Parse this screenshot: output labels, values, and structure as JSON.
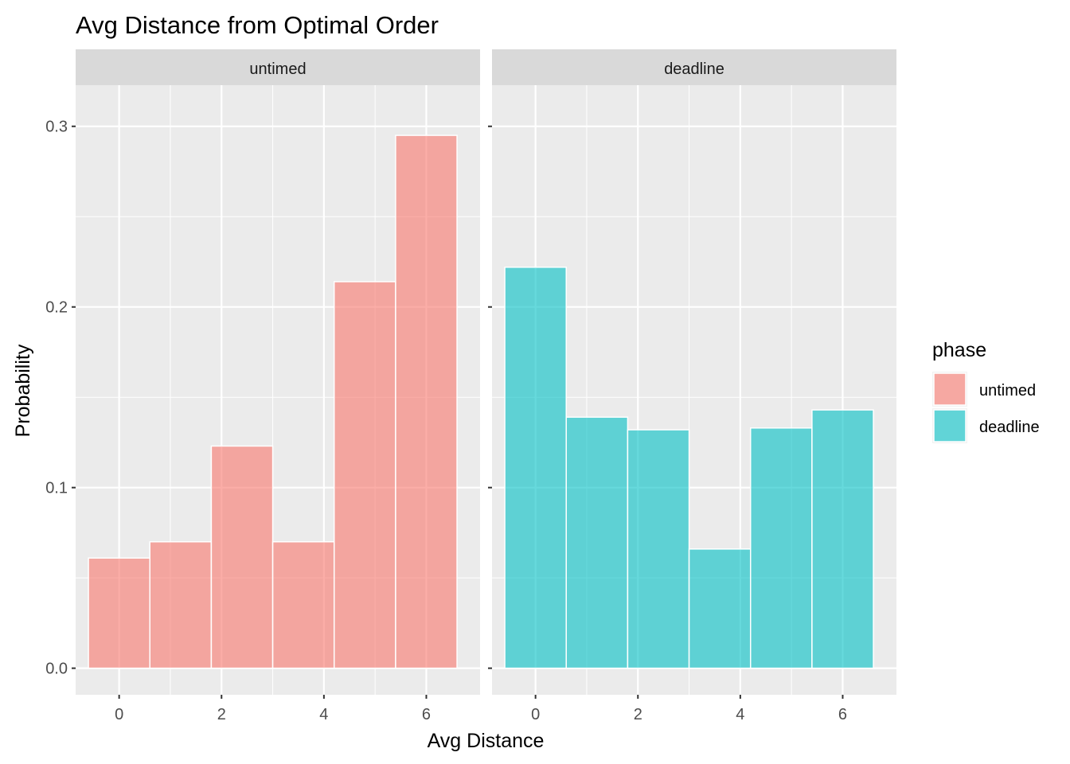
{
  "chart_data": {
    "type": "bar",
    "title": "Avg Distance from Optimal Order",
    "xlabel": "Avg Distance",
    "ylabel": "Probability",
    "xlim": [
      -0.85,
      7.05
    ],
    "ylim": [
      -0.0147,
      0.3228
    ],
    "x_ticks": [
      0,
      2,
      4,
      6
    ],
    "x_tick_labels": [
      "0",
      "2",
      "4",
      "6"
    ],
    "y_ticks": [
      0.0,
      0.1,
      0.2,
      0.3
    ],
    "y_tick_labels": [
      "0.0",
      "0.1",
      "0.2",
      "0.3"
    ],
    "grid": true,
    "bin_width": 1.2,
    "bin_centers": [
      0,
      1.2,
      2.4,
      3.6,
      4.8,
      6.0
    ],
    "legend": {
      "title": "phase",
      "position": "right",
      "items": [
        {
          "label": "untimed",
          "color": "#F8766D"
        },
        {
          "label": "deadline",
          "color": "#00BFC4"
        }
      ]
    },
    "panels": [
      {
        "strip_label": "untimed",
        "color": "#F8766D",
        "values": [
          0.061,
          0.07,
          0.123,
          0.07,
          0.214,
          0.295
        ]
      },
      {
        "strip_label": "deadline",
        "color": "#00BFC4",
        "values": [
          0.222,
          0.139,
          0.132,
          0.066,
          0.133,
          0.143
        ]
      }
    ]
  }
}
